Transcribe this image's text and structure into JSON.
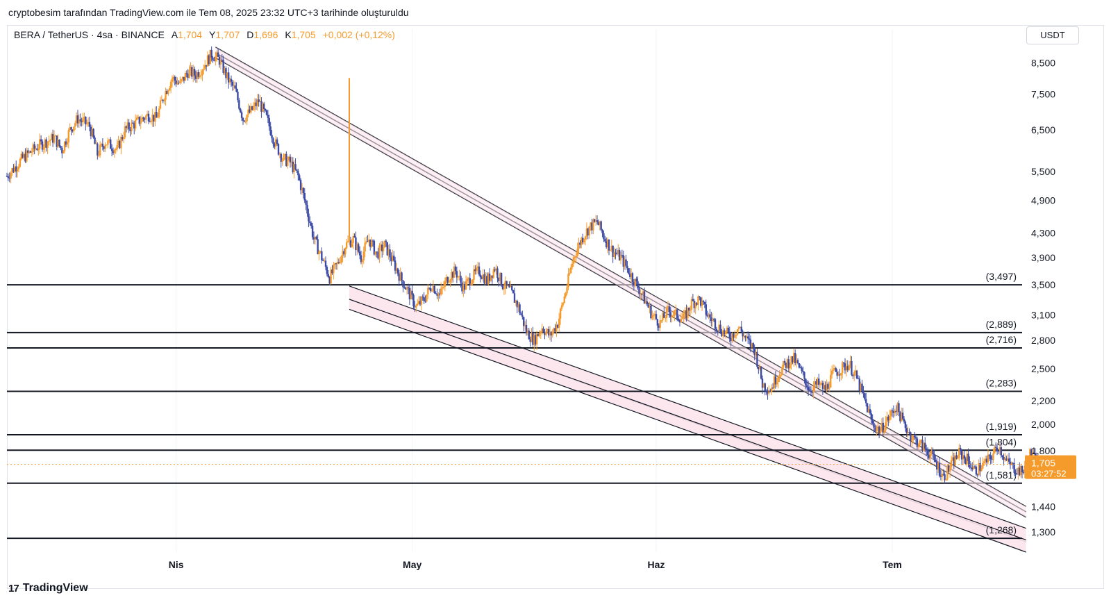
{
  "caption": "cryptobesim tarafından TradingView.com ile Tem 08, 2025 23:32 UTC+3 tarihinde oluşturuldu",
  "legend": {
    "symbol": "BERA / TetherUS · 4sa · BINANCE",
    "open_label": "A",
    "open": "1,704",
    "high_label": "Y",
    "high": "1,707",
    "low_label": "D",
    "low": "1,696",
    "close_label": "K",
    "close": "1,705",
    "change": "+0,002 (+0,12%)"
  },
  "currency": "USDT",
  "footer": {
    "brand": "TradingView",
    "logo_icon": "tradingview-logo-icon"
  },
  "colors": {
    "up": "#f59b2c",
    "down": "#3b4aa5",
    "level_line": "#131722",
    "channel_fill": "#fce4ec",
    "last_price": "#f59b2c"
  },
  "chart_data": {
    "type": "candlestick",
    "pair": "BERA/USDT",
    "timeframe": "4sa",
    "y_scale": "log",
    "ylim": [
      1.2,
      9.2
    ],
    "y_ticks": [
      "8,500",
      "7,500",
      "6,500",
      "5,500",
      "4,900",
      "4,300",
      "3,900",
      "3,500",
      "3,100",
      "2,800",
      "2,500",
      "2,200",
      "2,000",
      "1,800",
      "1,440",
      "1,300"
    ],
    "y_tick_values": [
      8.5,
      7.5,
      6.5,
      5.5,
      4.9,
      4.3,
      3.9,
      3.5,
      3.1,
      2.8,
      2.5,
      2.2,
      2.0,
      1.8,
      1.44,
      1.3
    ],
    "x_ticks": [
      "Nis",
      "May",
      "Haz",
      "Tem"
    ],
    "x_tick_days": [
      0,
      30,
      61,
      91
    ],
    "x_range_days": [
      -21.5,
      107.5
    ],
    "price_path": [
      [
        -21.5,
        5.4
      ],
      [
        -19.5,
        5.8
      ],
      [
        -17.5,
        6.1
      ],
      [
        -15.5,
        6.3
      ],
      [
        -14.5,
        6.0
      ],
      [
        -13.5,
        6.5
      ],
      [
        -12.5,
        6.8
      ],
      [
        -11,
        6.6
      ],
      [
        -10,
        5.9
      ],
      [
        -9,
        6.2
      ],
      [
        -7.5,
        6.0
      ],
      [
        -6.5,
        6.5
      ],
      [
        -5,
        6.7
      ],
      [
        -3.5,
        6.9
      ],
      [
        -2.5,
        6.8
      ],
      [
        -1.5,
        7.5
      ],
      [
        -0.5,
        8.0
      ],
      [
        0.5,
        7.8
      ],
      [
        1.5,
        8.2
      ],
      [
        2.5,
        8.1
      ],
      [
        3.5,
        8.4
      ],
      [
        4.5,
        8.8
      ],
      [
        5.5,
        8.6
      ],
      [
        6.5,
        8.0
      ],
      [
        7.5,
        7.6
      ],
      [
        8.5,
        6.8
      ],
      [
        9.5,
        7.0
      ],
      [
        10.5,
        7.3
      ],
      [
        11.5,
        6.8
      ],
      [
        12.5,
        6.2
      ],
      [
        13.5,
        5.8
      ],
      [
        14.5,
        5.7
      ],
      [
        15.5,
        5.4
      ],
      [
        16.5,
        4.8
      ],
      [
        17.5,
        4.2
      ],
      [
        18.5,
        3.9
      ],
      [
        19.5,
        3.6
      ],
      [
        20.5,
        3.8
      ],
      [
        21.5,
        4.1
      ],
      [
        22.5,
        4.2
      ],
      [
        23.5,
        3.9
      ],
      [
        24.5,
        4.2
      ],
      [
        25.5,
        3.95
      ],
      [
        26.5,
        4.1
      ],
      [
        27.5,
        3.85
      ],
      [
        28.5,
        3.6
      ],
      [
        29.5,
        3.4
      ],
      [
        30.5,
        3.2
      ],
      [
        31.5,
        3.3
      ],
      [
        32.5,
        3.5
      ],
      [
        33.5,
        3.35
      ],
      [
        34.5,
        3.6
      ],
      [
        35.5,
        3.7
      ],
      [
        36.5,
        3.45
      ],
      [
        37.5,
        3.6
      ],
      [
        38.5,
        3.7
      ],
      [
        39.5,
        3.55
      ],
      [
        40.5,
        3.75
      ],
      [
        41.5,
        3.5
      ],
      [
        42.5,
        3.4
      ],
      [
        43.5,
        3.2
      ],
      [
        44.5,
        2.9
      ],
      [
        45.5,
        2.8
      ],
      [
        46.5,
        2.95
      ],
      [
        47.5,
        2.85
      ],
      [
        48.5,
        3.0
      ],
      [
        49.5,
        3.4
      ],
      [
        50.5,
        3.9
      ],
      [
        51.5,
        4.2
      ],
      [
        52.5,
        4.4
      ],
      [
        53.5,
        4.5
      ],
      [
        54.5,
        4.2
      ],
      [
        55.5,
        4.0
      ],
      [
        56.5,
        3.9
      ],
      [
        57.5,
        3.7
      ],
      [
        58.5,
        3.5
      ],
      [
        59.5,
        3.3
      ],
      [
        60.5,
        3.1
      ],
      [
        61.5,
        3.0
      ],
      [
        62.5,
        3.15
      ],
      [
        63.5,
        3.1
      ],
      [
        64.5,
        3.05
      ],
      [
        65.5,
        3.25
      ],
      [
        66.5,
        3.3
      ],
      [
        67.5,
        3.1
      ],
      [
        68.5,
        3.0
      ],
      [
        69.5,
        2.9
      ],
      [
        70.5,
        2.85
      ],
      [
        71.5,
        2.95
      ],
      [
        72.5,
        2.8
      ],
      [
        73.5,
        2.7
      ],
      [
        74.5,
        2.35
      ],
      [
        75.5,
        2.3
      ],
      [
        76.5,
        2.45
      ],
      [
        77.5,
        2.55
      ],
      [
        78.5,
        2.6
      ],
      [
        79.5,
        2.45
      ],
      [
        80.5,
        2.3
      ],
      [
        81.5,
        2.35
      ],
      [
        82.5,
        2.3
      ],
      [
        83.5,
        2.45
      ],
      [
        84.5,
        2.5
      ],
      [
        85.5,
        2.55
      ],
      [
        86.5,
        2.4
      ],
      [
        87.5,
        2.2
      ],
      [
        88.5,
        2.0
      ],
      [
        89.5,
        1.95
      ],
      [
        90.5,
        2.05
      ],
      [
        91.5,
        2.15
      ],
      [
        92.5,
        2.0
      ],
      [
        93.5,
        1.9
      ],
      [
        94.5,
        1.85
      ],
      [
        95.5,
        1.8
      ],
      [
        96.5,
        1.72
      ],
      [
        97.5,
        1.62
      ],
      [
        98.5,
        1.7
      ],
      [
        99.5,
        1.78
      ],
      [
        100.5,
        1.74
      ],
      [
        101.5,
        1.66
      ],
      [
        102.5,
        1.7
      ],
      [
        103.5,
        1.75
      ],
      [
        104.5,
        1.84
      ],
      [
        105.5,
        1.72
      ],
      [
        106.5,
        1.68
      ],
      [
        107.5,
        1.65
      ],
      [
        108.5,
        1.78
      ],
      [
        109.5,
        1.72
      ],
      [
        110.5,
        1.68
      ],
      [
        111.5,
        1.7
      ],
      [
        112.5,
        1.66
      ],
      [
        113.5,
        1.705
      ]
    ],
    "spike": {
      "day": 22,
      "high": 8.0
    },
    "levels": [
      {
        "label": "(3,497)",
        "value": 3.497
      },
      {
        "label": "(2,889)",
        "value": 2.889
      },
      {
        "label": "(2,716)",
        "value": 2.716
      },
      {
        "label": "(2,283)",
        "value": 2.283
      },
      {
        "label": "(1,919)",
        "value": 1.919
      },
      {
        "label": "(1,804)",
        "value": 1.804
      },
      {
        "label": "(1,581)",
        "value": 1.581
      },
      {
        "label": "(1,268)",
        "value": 1.268
      }
    ],
    "last_price": {
      "value": 1.705,
      "label": "1,705",
      "countdown": "03:27:52"
    },
    "trendlines": {
      "upper_channel": [
        {
          "from": [
            5,
            9.05
          ],
          "to": [
            108,
            1.44
          ]
        },
        {
          "from": [
            5,
            8.85
          ],
          "to": [
            108,
            1.41
          ]
        },
        {
          "from": [
            5,
            8.68
          ],
          "to": [
            108,
            1.38
          ]
        }
      ],
      "lower_channel_bands": [
        {
          "top_from": [
            22,
            3.48
          ],
          "top_to": [
            108,
            1.32
          ],
          "bottom_from": [
            22,
            3.3
          ],
          "bottom_to": [
            108,
            1.25
          ]
        },
        {
          "top_from": [
            22,
            3.3
          ],
          "top_to": [
            108,
            1.26
          ],
          "bottom_from": [
            22,
            3.17
          ],
          "bottom_to": [
            108,
            1.2
          ]
        }
      ]
    }
  }
}
